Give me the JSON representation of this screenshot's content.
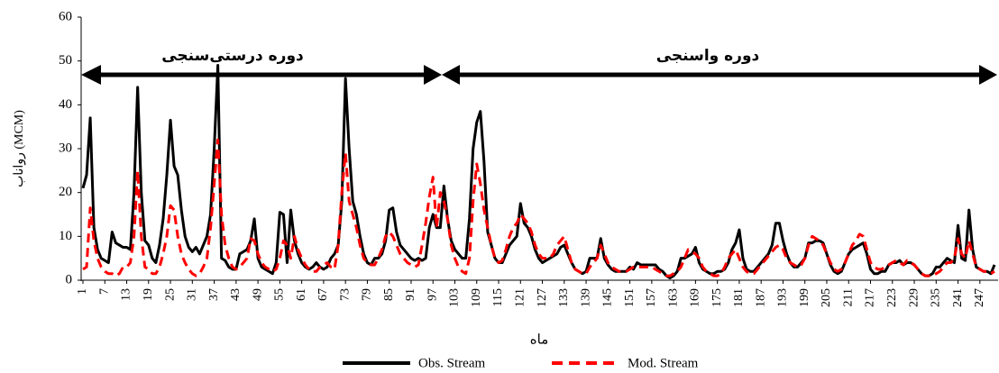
{
  "chart_data": {
    "type": "line",
    "y_axis_label": "رواناب (MCM)",
    "x_axis_label": "ماه",
    "annotations": [
      "دوره درستی‌سنجی",
      "دوره واسنجی"
    ],
    "x": [
      1,
      2,
      3,
      4,
      5,
      6,
      7,
      8,
      9,
      10,
      11,
      12,
      13,
      14,
      15,
      16,
      17,
      18,
      19,
      20,
      21,
      22,
      23,
      24,
      25,
      26,
      27,
      28,
      29,
      30,
      31,
      32,
      33,
      34,
      35,
      36,
      37,
      38,
      39,
      40,
      41,
      42,
      43,
      44,
      45,
      46,
      47,
      48,
      49,
      50,
      51,
      52,
      53,
      54,
      55,
      56,
      57,
      58,
      59,
      60,
      61,
      62,
      63,
      64,
      65,
      66,
      67,
      68,
      69,
      70,
      71,
      72,
      73,
      74,
      75,
      76,
      77,
      78,
      79,
      80,
      81,
      82,
      83,
      84,
      85,
      86,
      87,
      88,
      89,
      90,
      91,
      92,
      93,
      94,
      95,
      96,
      97,
      98,
      99,
      100,
      101,
      102,
      103,
      104,
      105,
      106,
      107,
      108,
      109,
      110,
      111,
      112,
      113,
      114,
      115,
      116,
      117,
      118,
      119,
      120,
      121,
      122,
      123,
      124,
      125,
      126,
      127,
      128,
      129,
      130,
      131,
      132,
      133,
      134,
      135,
      136,
      137,
      138,
      139,
      140,
      141,
      142,
      143,
      144,
      145,
      146,
      147,
      148,
      149,
      150,
      151,
      152,
      153,
      154,
      155,
      156,
      157,
      158,
      159,
      160,
      161,
      162,
      163,
      164,
      165,
      166,
      167,
      168,
      169,
      170,
      171,
      172,
      173,
      174,
      175,
      176,
      177,
      178,
      179,
      180,
      181,
      182,
      183,
      184,
      185,
      186,
      187,
      188,
      189,
      190,
      191,
      192,
      193,
      194,
      195,
      196,
      197,
      198,
      199,
      200,
      201,
      202,
      203,
      204,
      205,
      206,
      207,
      208,
      209,
      210,
      211,
      212,
      213,
      214,
      215,
      216,
      217,
      218,
      219,
      220,
      221,
      222,
      223,
      224,
      225,
      226,
      227,
      228,
      229,
      230,
      231,
      232,
      233,
      234,
      235,
      236,
      237,
      238,
      239,
      240,
      241,
      242,
      243,
      244,
      245,
      246,
      247,
      248,
      249,
      250,
      251
    ],
    "series": [
      {
        "name": "Obs. Stream",
        "color": "#000000",
        "line_style": "solid",
        "values": [
          21,
          24,
          37,
          12,
          7,
          5,
          4.5,
          4,
          11,
          8.5,
          8,
          7.5,
          7.5,
          7,
          20,
          44,
          20,
          9,
          8,
          5,
          4,
          8,
          14,
          24,
          36.5,
          26,
          24,
          16,
          10,
          7.5,
          6.5,
          7.5,
          6,
          8,
          10,
          15,
          30,
          49,
          5,
          4.5,
          3,
          2.5,
          2.5,
          6,
          6.5,
          7,
          9,
          14,
          5,
          3,
          2.5,
          2,
          1.5,
          4,
          15.5,
          15,
          4,
          16,
          9,
          6,
          4,
          3,
          2.5,
          3,
          4,
          3,
          2.5,
          3,
          5,
          6,
          8,
          18,
          46,
          30,
          18,
          15,
          10,
          6,
          4,
          3.5,
          5,
          5,
          6,
          9,
          16,
          16.5,
          11,
          8,
          7,
          6,
          5,
          4.5,
          5,
          4.5,
          5,
          12,
          15,
          12,
          12,
          21.5,
          14,
          9,
          7,
          6,
          5,
          5,
          14,
          30,
          36,
          38.5,
          27,
          11,
          8,
          5,
          4,
          4,
          6,
          8,
          9,
          10,
          17.5,
          13,
          12,
          10,
          7,
          5,
          4,
          4.5,
          5,
          5.5,
          6,
          7.5,
          8,
          6,
          4,
          2.5,
          2,
          1.5,
          2,
          5,
          5,
          5,
          9.5,
          5,
          3.5,
          2.5,
          2,
          2,
          2,
          2,
          3,
          2.5,
          4,
          3.5,
          3.5,
          3.5,
          3.5,
          3.5,
          2.5,
          2,
          1,
          0.5,
          1,
          2,
          5,
          5,
          5.5,
          6,
          7.5,
          4,
          2.5,
          2,
          1.5,
          1.5,
          2,
          2,
          2.5,
          4,
          7,
          8.5,
          11.5,
          5,
          2.5,
          2,
          2,
          3,
          4,
          5,
          6,
          8,
          13,
          13,
          9,
          6,
          4,
          3,
          3,
          4,
          5,
          8.5,
          8.5,
          9,
          9,
          8.5,
          6,
          3.5,
          2,
          1.5,
          2,
          4,
          6,
          7,
          7.5,
          8,
          8.5,
          6,
          2.5,
          1.5,
          1.5,
          2,
          2,
          3.5,
          4,
          4,
          4.5,
          3.5,
          4,
          4,
          3.5,
          2.5,
          1.5,
          1,
          1,
          1.5,
          3,
          3,
          4,
          5,
          4.5,
          4,
          12.5,
          5,
          4.5,
          16,
          7,
          3,
          2.5,
          2,
          2,
          1.5,
          3.5
        ]
      },
      {
        "name": "Mod. Stream",
        "color": "#ff0000",
        "line_style": "dashed",
        "values": [
          2.5,
          3,
          16.5,
          9,
          5,
          3,
          2,
          1.5,
          1.5,
          1,
          1.5,
          3,
          3,
          4,
          10,
          25,
          10,
          3,
          2.5,
          1.5,
          1.5,
          3,
          6,
          10,
          17,
          16,
          10,
          6,
          4,
          2.5,
          1.5,
          1,
          1.5,
          3,
          5,
          12,
          22,
          32,
          15,
          8,
          5,
          3,
          2.5,
          3,
          4,
          5,
          9.5,
          9,
          6,
          4,
          3,
          2.5,
          2,
          2.5,
          5,
          9,
          8,
          5,
          10,
          7,
          5,
          3.5,
          2.5,
          2,
          2,
          3,
          3.5,
          4,
          3,
          2.5,
          8,
          20,
          29,
          18,
          15,
          12,
          8,
          5,
          4,
          3.5,
          3.5,
          5,
          7,
          10,
          11,
          10,
          8,
          6,
          5,
          4,
          3.5,
          3,
          3.5,
          8,
          13,
          19,
          23.5,
          12,
          20,
          18,
          14,
          8,
          5,
          3,
          2,
          1.5,
          5,
          18,
          26.5,
          22,
          16,
          12,
          8,
          5,
          4,
          4.5,
          7,
          10,
          12,
          13,
          15,
          14,
          13,
          11,
          8,
          6,
          5,
          5,
          5,
          6,
          8,
          9,
          10,
          7,
          4,
          2.5,
          2,
          1.5,
          1.5,
          3,
          4,
          5,
          8,
          6,
          4,
          3,
          2.5,
          2,
          2,
          2,
          2.5,
          3,
          3,
          3,
          3,
          3,
          3,
          2.5,
          2,
          1.5,
          1,
          1,
          1.5,
          2,
          3,
          5,
          7,
          6.5,
          6,
          5,
          3,
          2,
          1.5,
          1,
          1,
          1.5,
          3,
          5,
          6,
          7,
          5,
          3,
          2,
          1.5,
          1.5,
          2.5,
          3.5,
          4.5,
          5.5,
          6.5,
          7.5,
          8,
          7,
          5,
          4,
          3.5,
          3,
          3.5,
          5,
          8,
          10,
          9.5,
          9,
          8,
          6,
          4,
          2.5,
          2,
          2.5,
          4,
          6,
          8,
          9,
          10.5,
          10,
          7,
          4,
          3,
          2.5,
          2.5,
          3,
          3.5,
          4,
          4.5,
          4,
          3.5,
          4.5,
          4,
          3.5,
          2.5,
          1.5,
          1,
          1,
          1,
          1.5,
          2,
          3,
          4,
          4,
          5,
          9.5,
          6,
          5,
          9,
          6,
          3,
          2.5,
          2,
          2,
          1.5,
          2
        ]
      }
    ],
    "xlim": [
      1,
      251
    ],
    "ylim": [
      0,
      60
    ],
    "xticks": [
      1,
      7,
      13,
      19,
      25,
      31,
      37,
      43,
      49,
      55,
      61,
      67,
      73,
      79,
      85,
      91,
      97,
      103,
      109,
      115,
      121,
      127,
      133,
      139,
      145,
      151,
      157,
      163,
      169,
      175,
      181,
      187,
      193,
      199,
      205,
      211,
      217,
      223,
      229,
      235,
      241,
      247
    ],
    "yticks": [
      0,
      10,
      20,
      30,
      40,
      50,
      60
    ],
    "legend": "bottom"
  }
}
